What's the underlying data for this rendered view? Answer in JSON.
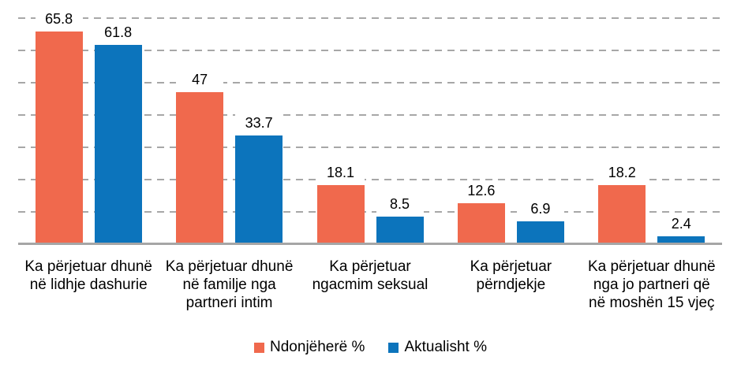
{
  "chart_data": {
    "type": "bar",
    "title": "",
    "xlabel": "",
    "ylabel": "",
    "categories": [
      "Ka përjetuar dhunë\nnë lidhje dashurie",
      "Ka përjetuar dhunë\nnë familje nga\npartneri intim",
      "Ka përjetuar\nngacmim seksual",
      "Ka përjetuar\npërndjekje",
      "Ka përjetuar dhunë\nnga jo partneri që\nnë moshën 15 vjeç"
    ],
    "series": [
      {
        "name": "Ndonjëherë %",
        "color": "#F0694D",
        "values": [
          65.8,
          47,
          18.1,
          12.6,
          18.2
        ]
      },
      {
        "name": "Aktualisht %",
        "color": "#0C74BC",
        "values": [
          61.8,
          33.7,
          8.5,
          6.9,
          2.4
        ]
      }
    ],
    "ylim": [
      0,
      70
    ],
    "gridline_step": 10,
    "grid": "horizontal-dashed",
    "gridline_color": "#A7A7A7",
    "baseline_color": "#A6A6A6",
    "y_axis_tick_labels_visible": false,
    "value_labels_visible": true,
    "legend_position": "bottom"
  }
}
